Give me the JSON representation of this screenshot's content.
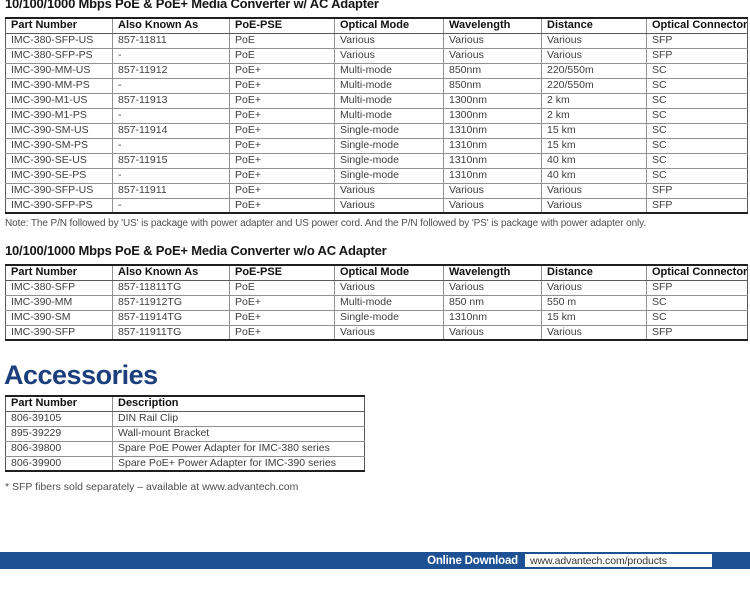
{
  "colors": {
    "heading_navy": "#1b3e7d",
    "footer_bar_blue": "#1d5193",
    "table_border_dark": "#1f1f1f"
  },
  "section_ac": {
    "title": "10/100/1000 Mbps PoE & PoE+ Media Converter w/ AC Adapter",
    "columns": [
      "Part Number",
      "Also Known As",
      "PoE-PSE",
      "Optical Mode",
      "Wavelength",
      "Distance",
      "Optical Connector"
    ],
    "rows": [
      [
        "IMC-380-SFP-US",
        "857-11811",
        "PoE",
        "Various",
        "Various",
        "Various",
        "SFP"
      ],
      [
        "IMC-380-SFP-PS",
        "-",
        "PoE",
        "Various",
        "Various",
        "Various",
        "SFP"
      ],
      [
        "IMC-390-MM-US",
        "857-11912",
        "PoE+",
        "Multi-mode",
        "850nm",
        "220/550m",
        "SC"
      ],
      [
        "IMC-390-MM-PS",
        "-",
        "PoE+",
        "Multi-mode",
        "850nm",
        "220/550m",
        "SC"
      ],
      [
        "IMC-390-M1-US",
        "857-11913",
        "PoE+",
        "Multi-mode",
        "1300nm",
        "2 km",
        "SC"
      ],
      [
        "IMC-390-M1-PS",
        "-",
        "PoE+",
        "Multi-mode",
        "1300nm",
        "2 km",
        "SC"
      ],
      [
        "IMC-390-SM-US",
        "857-11914",
        "PoE+",
        "Single-mode",
        "1310nm",
        "15 km",
        "SC"
      ],
      [
        "IMC-390-SM-PS",
        "-",
        "PoE+",
        "Single-mode",
        "1310nm",
        "15 km",
        "SC"
      ],
      [
        "IMC-390-SE-US",
        "857-11915",
        "PoE+",
        "Single-mode",
        "1310nm",
        "40 km",
        "SC"
      ],
      [
        "IMC-390-SE-PS",
        "-",
        "PoE+",
        "Single-mode",
        "1310nm",
        "40 km",
        "SC"
      ],
      [
        "IMC-390-SFP-US",
        "857-11911",
        "PoE+",
        "Various",
        "Various",
        "Various",
        "SFP"
      ],
      [
        "IMC-390-SFP-PS",
        "-",
        "PoE+",
        "Various",
        "Various",
        "Various",
        "SFP"
      ]
    ],
    "note": "Note: The P/N followed by 'US' is package with power adapter and US power cord. And the P/N followed by 'PS' is package with  power adapter only."
  },
  "section_no_ac": {
    "title": "10/100/1000 Mbps PoE & PoE+ Media Converter w/o AC Adapter",
    "columns": [
      "Part Number",
      "Also Known As",
      "PoE-PSE",
      "Optical Mode",
      "Wavelength",
      "Distance",
      "Optical Connector"
    ],
    "rows": [
      [
        "IMC-380-SFP",
        "857-11811TG",
        "PoE",
        "Various",
        "Various",
        "Various",
        "SFP"
      ],
      [
        "IMC-390-MM",
        "857-11912TG",
        "PoE+",
        "Multi-mode",
        "850 nm",
        "550 m",
        "SC"
      ],
      [
        "IMC-390-SM",
        "857-11914TG",
        "PoE+",
        "Single-mode",
        "1310nm",
        "15 km",
        "SC"
      ],
      [
        "IMC-390-SFP",
        "857-11911TG",
        "PoE+",
        "Various",
        "Various",
        "Various",
        "SFP"
      ]
    ]
  },
  "accessories": {
    "title": "Accessories",
    "columns": [
      "Part Number",
      "Description"
    ],
    "rows": [
      [
        "806-39105",
        "DIN Rail Clip"
      ],
      [
        "895-39229",
        "Wall-mount Bracket"
      ],
      [
        "806-39800",
        "Spare PoE Power Adapter for IMC-380 series"
      ],
      [
        "806-39900",
        "Spare PoE+ Power Adapter for IMC-390 series"
      ]
    ],
    "footnote": "* SFP fibers sold separately – available at www.advantech.com"
  },
  "footer": {
    "label": "Online Download",
    "url": "www.advantech.com/products"
  }
}
